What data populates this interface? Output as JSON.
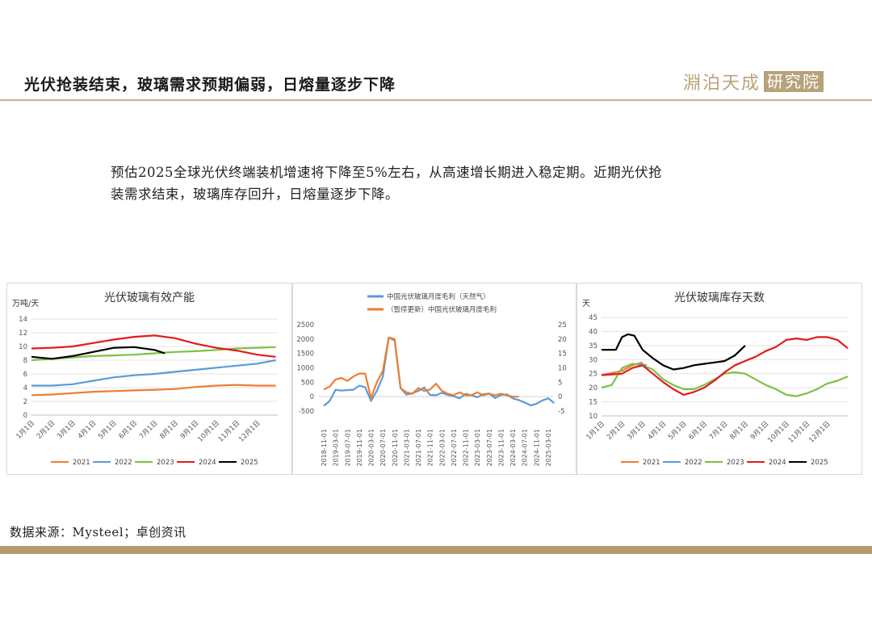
{
  "header": {
    "title": "光伏抢装结束，玻璃需求预期偏弱，日熔量逐步下降",
    "logo_text": "淵泊天成",
    "logo_box": "研究院"
  },
  "summary": {
    "line1": "预估2025全球光伏终端装机增速将下降至5%左右，从高速增长期进入稳定期。近期光伏抢",
    "line2": "装需求结束，玻璃库存回升，日熔量逐步下降。"
  },
  "footer": {
    "source": "数据来源：Mysteel；卓创资讯"
  },
  "colors": {
    "s2021": "#ED7D31",
    "s2022": "#5B9BD5",
    "s2023": "#7CC242",
    "s2024": "#E31A1C",
    "s2025": "#000000",
    "blue": "#5B9BD5",
    "orange": "#ED7D31",
    "accent": "#b39c6e"
  },
  "chart_data": [
    {
      "type": "line",
      "title": "光伏玻璃有效产能",
      "ylabel": "万吨/天",
      "ylim": [
        0,
        14
      ],
      "yticks": [
        0,
        2,
        4,
        6,
        8,
        10,
        12,
        14
      ],
      "grid": true,
      "legend": "bottom",
      "x_ticks": [
        "1月1日",
        "2月1日",
        "3月1日",
        "4月1日",
        "5月1日",
        "6月1日",
        "7月1日",
        "8月1日",
        "9月1日",
        "10月1日",
        "11月1日",
        "12月1日"
      ],
      "series": [
        {
          "name": "2021",
          "color": "#ED7D31",
          "x": [
            0,
            1,
            2,
            3,
            4,
            5,
            6,
            7,
            8,
            9,
            10,
            11,
            11.9
          ],
          "values": [
            2.9,
            3.0,
            3.2,
            3.4,
            3.5,
            3.6,
            3.7,
            3.8,
            4.1,
            4.3,
            4.4,
            4.3,
            4.3
          ]
        },
        {
          "name": "2022",
          "color": "#5B9BD5",
          "x": [
            0,
            1,
            2,
            3,
            4,
            5,
            6,
            7,
            8,
            9,
            10,
            11,
            11.9
          ],
          "values": [
            4.3,
            4.3,
            4.5,
            5.0,
            5.5,
            5.8,
            6.0,
            6.3,
            6.6,
            6.9,
            7.2,
            7.5,
            8.0
          ]
        },
        {
          "name": "2023",
          "color": "#7CC242",
          "x": [
            0,
            1,
            2,
            3,
            4,
            5,
            6,
            7,
            8,
            9,
            10,
            11,
            11.9
          ],
          "values": [
            8.0,
            8.2,
            8.4,
            8.6,
            8.7,
            8.8,
            9.0,
            9.2,
            9.3,
            9.5,
            9.7,
            9.8,
            9.9
          ]
        },
        {
          "name": "2024",
          "color": "#E31A1C",
          "x": [
            0,
            1,
            2,
            3,
            4,
            5,
            6,
            7,
            8,
            9,
            10,
            11,
            11.9
          ],
          "values": [
            9.7,
            9.8,
            10.0,
            10.5,
            11.0,
            11.4,
            11.6,
            11.2,
            10.4,
            9.8,
            9.4,
            8.8,
            8.5
          ]
        },
        {
          "name": "2025",
          "color": "#000000",
          "x": [
            0,
            1,
            2,
            3,
            4,
            5,
            6,
            6.5
          ],
          "values": [
            8.5,
            8.2,
            8.6,
            9.2,
            9.8,
            9.9,
            9.5,
            9.0
          ]
        }
      ]
    },
    {
      "type": "line",
      "title": "",
      "ylim_left": [
        -500,
        2500
      ],
      "yticks_left": [
        -500,
        0,
        500,
        1000,
        1500,
        2000,
        2500
      ],
      "ylim_right": [
        -5,
        25
      ],
      "yticks_right": [
        -5,
        0,
        5,
        10,
        15,
        20,
        25
      ],
      "grid": false,
      "legend": "top",
      "x_ticks": [
        "2018-11-01",
        "2019-03-01",
        "2019-07-01",
        "2019-11-01",
        "2020-03-01",
        "2020-07-01",
        "2020-11-01",
        "2021-03-01",
        "2021-07-01",
        "2021-11-01",
        "2022-03-01",
        "2022-07-01",
        "2022-11-01",
        "2023-03-01",
        "2023-07-01",
        "2023-11-01",
        "2024-03-01",
        "2024-07-01",
        "2024-11-01",
        "2025-03-01"
      ],
      "series": [
        {
          "name": "中国光伏玻璃月度毛利（天然气）",
          "axis": "left",
          "color": "#5B9BD5",
          "x": [
            0,
            0.5,
            1,
            1.5,
            2,
            2.5,
            3,
            3.5,
            4,
            4.5,
            5,
            5.5,
            6,
            6.5,
            7,
            7.5,
            8,
            8.5,
            9,
            9.5,
            10,
            10.5,
            11,
            11.5,
            12,
            12.5,
            13,
            13.5,
            14,
            14.5,
            15,
            15.5,
            16,
            16.5,
            17,
            17.5,
            18,
            18.5,
            19,
            19.5
          ],
          "values": [
            -320,
            -150,
            240,
            210,
            230,
            240,
            380,
            330,
            -150,
            200,
            700,
            2050,
            1950,
            300,
            70,
            120,
            200,
            320,
            60,
            50,
            130,
            60,
            20,
            -60,
            100,
            50,
            -20,
            80,
            110,
            -50,
            60,
            80,
            -60,
            -120,
            -200,
            -300,
            -250,
            -130,
            -60,
            -220
          ]
        },
        {
          "name": "（暂停更新）中国光伏玻璃月度毛利",
          "axis": "right",
          "color": "#ED7D31",
          "x": [
            0,
            0.5,
            1,
            1.5,
            2,
            2.5,
            3,
            3.5,
            4,
            4.5,
            5,
            5.5,
            6,
            6.5,
            7,
            7.5,
            8,
            8.5,
            9,
            9.5,
            10,
            10.5,
            11,
            11.5,
            12,
            12.5,
            13,
            13.5,
            14,
            14.5,
            15,
            15.5,
            16,
            16.5
          ],
          "values": [
            2.5,
            3.5,
            6,
            6.5,
            5.5,
            7,
            8,
            8,
            -0.5,
            5,
            9,
            20.5,
            20,
            3,
            1.5,
            1,
            3,
            2,
            2.5,
            4.5,
            2,
            1,
            0.5,
            1.5,
            0.5,
            0.5,
            1.5,
            0.5,
            1,
            0.5,
            1,
            0.5,
            0,
            0
          ]
        }
      ]
    },
    {
      "type": "line",
      "title": "光伏玻璃库存天数",
      "ylabel": "天",
      "ylim": [
        10,
        45
      ],
      "yticks": [
        10,
        15,
        20,
        25,
        30,
        35,
        40,
        45
      ],
      "grid": true,
      "legend": "bottom",
      "x_ticks": [
        "1月1日",
        "2月1日",
        "3月1日",
        "4月1日",
        "5月1日",
        "6月1日",
        "7月1日",
        "8月1日",
        "9月1日",
        "10月1日",
        "11月1日",
        "12月1日"
      ],
      "series": [
        {
          "name": "2021",
          "color": "#ED7D31",
          "x": [
            0,
            1,
            1.5,
            2
          ],
          "values": [
            24.5,
            26,
            28,
            29
          ]
        },
        {
          "name": "2022",
          "color": "#5B9BD5",
          "x": [
            1.8,
            2.2
          ],
          "values": [
            28.5,
            28
          ]
        },
        {
          "name": "2023",
          "color": "#7CC242",
          "x": [
            0,
            0.5,
            1,
            1.5,
            2,
            2.5,
            3,
            3.5,
            4,
            4.5,
            5,
            5.5,
            6,
            6.5,
            7,
            7.5,
            8,
            8.5,
            9,
            9.5,
            10,
            10.5,
            11,
            11.5,
            12
          ],
          "values": [
            20,
            21,
            27,
            28.5,
            28,
            26.5,
            23,
            21,
            19.5,
            19.5,
            21,
            23,
            25,
            25.5,
            25,
            23,
            21,
            19.5,
            17.5,
            17,
            18,
            19.5,
            21.5,
            22.5,
            24
          ]
        },
        {
          "name": "2024",
          "color": "#E31A1C",
          "x": [
            0,
            1,
            1.5,
            2,
            2.5,
            3,
            3.5,
            4,
            4.5,
            5,
            5.5,
            6,
            6.5,
            7,
            7.5,
            8,
            8.5,
            9,
            9.5,
            10,
            10.5,
            11,
            11.5,
            12
          ],
          "values": [
            24.5,
            25,
            27,
            28,
            25,
            22,
            19.5,
            17.5,
            18.5,
            20,
            22.5,
            25.5,
            28,
            29.5,
            31,
            33,
            34.5,
            37,
            37.5,
            37,
            38,
            38,
            37,
            34
          ]
        },
        {
          "name": "2025",
          "color": "#000000",
          "x": [
            0,
            0.7,
            1,
            1.3,
            1.6,
            2,
            2.5,
            3,
            3.5,
            4,
            4.5,
            5,
            5.5,
            6,
            6.5,
            7
          ],
          "values": [
            33.5,
            33.5,
            38,
            39,
            38.5,
            33.5,
            30.5,
            28,
            26.5,
            27,
            28,
            28.5,
            29,
            29.5,
            31.5,
            35
          ]
        }
      ]
    }
  ]
}
